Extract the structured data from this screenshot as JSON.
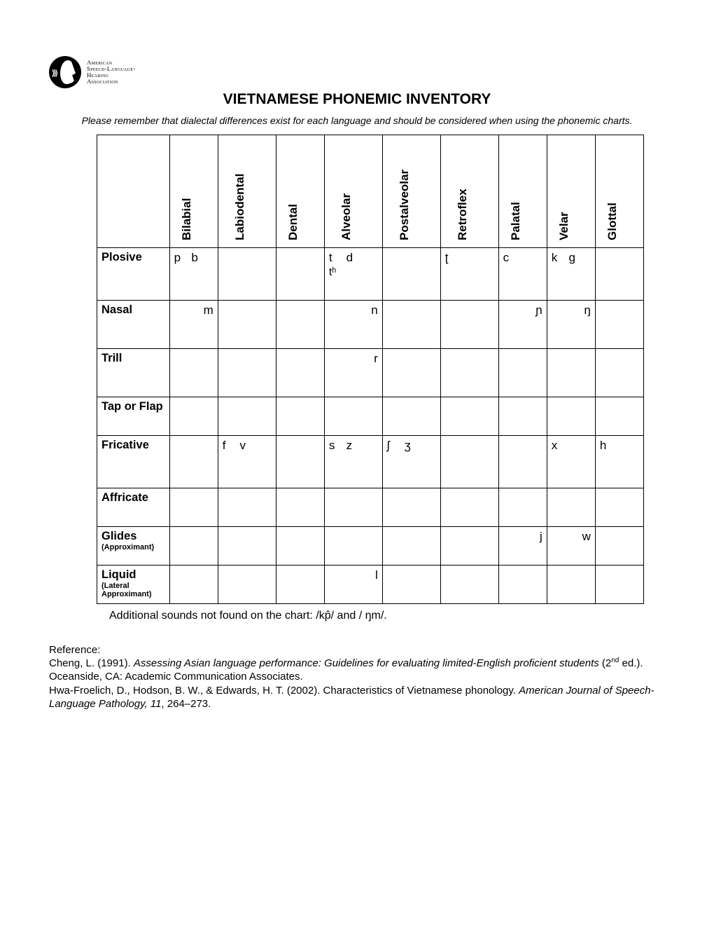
{
  "logo": {
    "line1": "American",
    "line2": "Speech-Language-",
    "line3": "Hearing",
    "line4": "Association"
  },
  "title": "VIETNAMESE PHONEMIC INVENTORY",
  "subtitle": "Please remember that dialectal differences exist for each language and should be considered when using the phonemic charts.",
  "columns": [
    "Bilabial",
    "Labiodental",
    "Dental",
    "Alveolar",
    "Postalveolar",
    "Retroflex",
    "Palatal",
    "Velar",
    "Glottal"
  ],
  "rows": [
    {
      "label": "Plosive",
      "sub": ""
    },
    {
      "label": "Nasal",
      "sub": ""
    },
    {
      "label": "Trill",
      "sub": ""
    },
    {
      "label": "Tap or Flap",
      "sub": ""
    },
    {
      "label": "Fricative",
      "sub": ""
    },
    {
      "label": "Affricate",
      "sub": ""
    },
    {
      "label": "Glides",
      "sub": "(Approximant)"
    },
    {
      "label": "Liquid",
      "sub": "(Lateral Approximant)"
    }
  ],
  "cells": {
    "Plosive": {
      "Bilabial": {
        "l": "p",
        "r": "b"
      },
      "Alveolar": {
        "l": "t",
        "r": "d",
        "below": "tʰ"
      },
      "Retroflex": {
        "l": "ʈ",
        "r": ""
      },
      "Palatal": {
        "l": "c",
        "r": ""
      },
      "Velar": {
        "l": "k",
        "r": "g"
      }
    },
    "Nasal": {
      "Bilabial": {
        "r": "m"
      },
      "Alveolar": {
        "r": "n"
      },
      "Palatal": {
        "r": "ɲ"
      },
      "Velar": {
        "r": "ŋ"
      }
    },
    "Trill": {
      "Alveolar": {
        "r": "r"
      }
    },
    "Tap or Flap": {},
    "Fricative": {
      "Labiodental": {
        "l": "f",
        "r": "v"
      },
      "Alveolar": {
        "l": "s",
        "r": "z"
      },
      "Postalveolar": {
        "l": "ʃ",
        "r": "ʒ"
      },
      "Velar": {
        "l": "x",
        "r": ""
      },
      "Glottal": {
        "l": "h",
        "r": ""
      }
    },
    "Affricate": {},
    "Glides": {
      "Palatal": {
        "r": "j"
      },
      "Velar": {
        "r": "w"
      }
    },
    "Liquid": {
      "Alveolar": {
        "r": "l"
      }
    }
  },
  "additional": "Additional sounds not found on the chart: /kp̂/ and / ŋm/.",
  "referencesHeading": "Reference:",
  "ref1a": "Cheng, L. (1991). ",
  "ref1i": "Assessing Asian language performance: Guidelines for evaluating limited-English proficient students",
  "ref1b": " (2",
  "ref1sup": "nd",
  "ref1c": " ed.). Oceanside, CA: Academic Communication Associates.",
  "ref2a": "Hwa-Froelich, D., Hodson, B. W., & Edwards, H. T. (2002). Characteristics of Vietnamese phonology. ",
  "ref2i": "American Journal of Speech-Language Pathology, 11",
  "ref2b": ", 264–273."
}
